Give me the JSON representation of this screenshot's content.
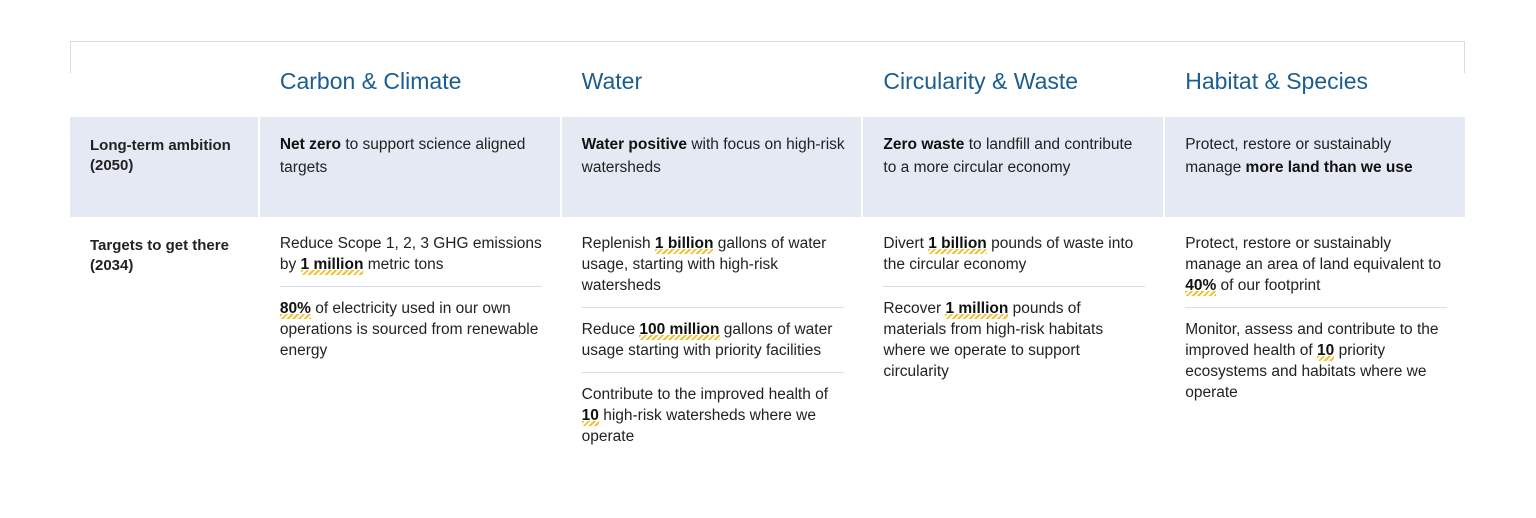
{
  "row_labels": {
    "ambition": "Long-term ambition (2050)",
    "targets": "Targets to get there (2034)"
  },
  "columns": [
    {
      "heading": "Carbon & Climate",
      "ambition": [
        {
          "t": "Net zero",
          "b": true
        },
        {
          "t": " to support science aligned targets"
        }
      ],
      "targets": [
        [
          {
            "t": "Reduce Scope 1, 2, 3 GHG emissions by "
          },
          {
            "t": "1 million",
            "h": true
          },
          {
            "t": " metric tons"
          }
        ],
        [
          {
            "t": "80%",
            "h": true
          },
          {
            "t": " of electricity used in our own operations is sourced from renewable energy"
          }
        ]
      ]
    },
    {
      "heading": "Water",
      "ambition": [
        {
          "t": "Water positive",
          "b": true
        },
        {
          "t": " with focus on high-risk watersheds"
        }
      ],
      "targets": [
        [
          {
            "t": "Replenish "
          },
          {
            "t": "1 billion",
            "h": true
          },
          {
            "t": " gallons of water usage, starting with high-risk watersheds"
          }
        ],
        [
          {
            "t": "Reduce "
          },
          {
            "t": "100 million",
            "h": true
          },
          {
            "t": " gallons of water usage starting with priority facilities"
          }
        ],
        [
          {
            "t": "Contribute to the improved health of "
          },
          {
            "t": "10",
            "h": true
          },
          {
            "t": " high-risk watersheds where we operate"
          }
        ]
      ]
    },
    {
      "heading": "Circularity & Waste",
      "ambition": [
        {
          "t": "Zero waste",
          "b": true
        },
        {
          "t": " to landfill and contribute to a more circular economy"
        }
      ],
      "targets": [
        [
          {
            "t": "Divert "
          },
          {
            "t": "1 billion",
            "h": true
          },
          {
            "t": " pounds of waste into the circular economy"
          }
        ],
        [
          {
            "t": "Recover "
          },
          {
            "t": "1 million",
            "h": true
          },
          {
            "t": " pounds of materials from high-risk habitats where we operate to support circularity"
          }
        ]
      ]
    },
    {
      "heading": "Habitat & Species",
      "ambition": [
        {
          "t": "Protect, restore or sustainably manage "
        },
        {
          "t": "more land than we use",
          "b": true
        }
      ],
      "targets": [
        [
          {
            "t": "Protect, restore or sustainably manage an area of land equivalent to "
          },
          {
            "t": "40%",
            "h": true
          },
          {
            "t": " of our footprint"
          }
        ],
        [
          {
            "t": "Monitor, assess and contribute to the improved health of "
          },
          {
            "t": "10",
            "h": true
          },
          {
            "t": " priority ecosystems and habitats where we operate"
          }
        ]
      ]
    }
  ],
  "colors": {
    "heading": "#1b5d91",
    "band": "#e4e9f3",
    "highlight": "#f2c230",
    "rule": "#d6dcea"
  }
}
